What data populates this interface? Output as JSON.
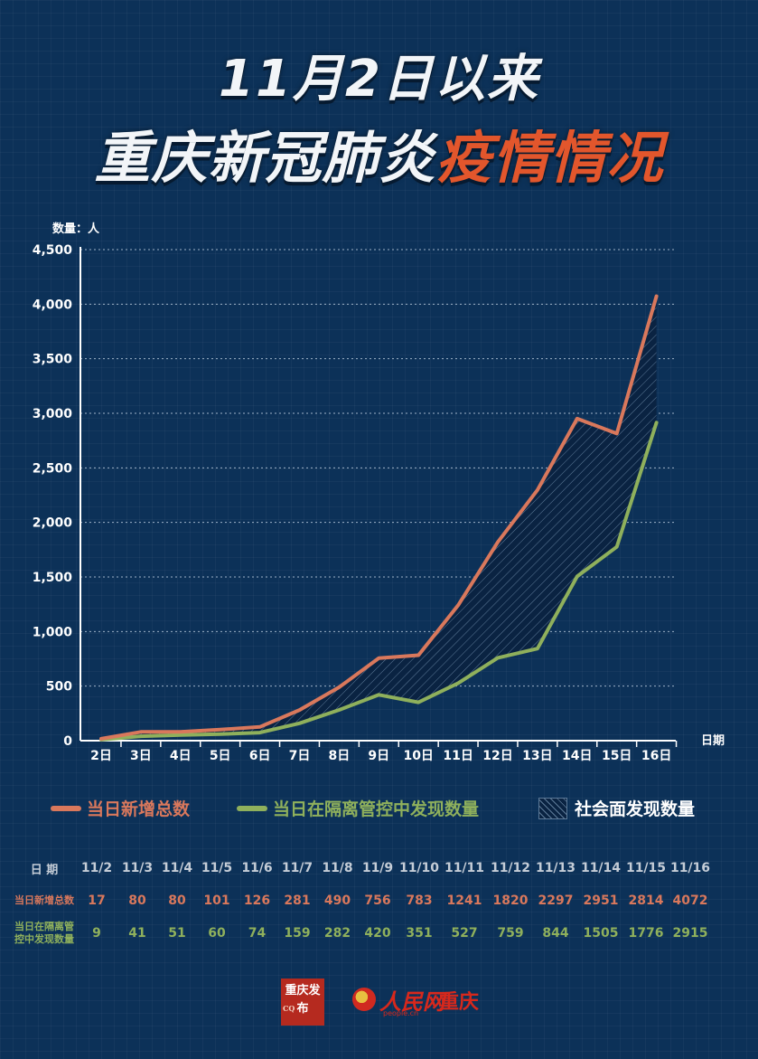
{
  "title": {
    "line1": "11月2日以来",
    "line2_white": "重庆新冠肺炎",
    "line2_highlight": "疫情情况"
  },
  "colors": {
    "background": "#0c3158",
    "total": "#d9785c",
    "isolated": "#8fb05c",
    "highlight": "#e2562c"
  },
  "chart_data": {
    "type": "line",
    "ylabel": "数量：人",
    "xlabel": "日期",
    "ylim": [
      0,
      4500
    ],
    "yticks": [
      0,
      500,
      1000,
      1500,
      2000,
      2500,
      3000,
      3500,
      4000,
      4500
    ],
    "ytick_labels": [
      "0",
      "500",
      "1,000",
      "1,500",
      "2,000",
      "2,500",
      "3,000",
      "3,500",
      "4,000",
      "4,500"
    ],
    "categories": [
      "2日",
      "3日",
      "4日",
      "5日",
      "6日",
      "7日",
      "8日",
      "9日",
      "10日",
      "11日",
      "12日",
      "13日",
      "14日",
      "15日",
      "16日"
    ],
    "grid": "horizontal dotted",
    "series": [
      {
        "name": "当日新增总数",
        "color": "#d9785c",
        "values": [
          17,
          80,
          80,
          101,
          126,
          281,
          490,
          756,
          783,
          1241,
          1820,
          2297,
          2951,
          2814,
          4072
        ]
      },
      {
        "name": "当日在隔离管控中发现数量",
        "color": "#8fb05c",
        "values": [
          9,
          41,
          51,
          60,
          74,
          159,
          282,
          420,
          351,
          527,
          759,
          844,
          1505,
          1776,
          2915
        ]
      }
    ],
    "area_between": {
      "name": "社会面发现数量"
    }
  },
  "legend": {
    "total": "当日新增总数",
    "isolated": "当日在隔离管控中发现数量",
    "community": "社会面发现数量"
  },
  "table": {
    "header_label": "日 期",
    "dates": [
      "11/2",
      "11/3",
      "11/4",
      "11/5",
      "11/6",
      "11/7",
      "11/8",
      "11/9",
      "11/10",
      "11/11",
      "11/12",
      "11/13",
      "11/14",
      "11/15",
      "11/16"
    ],
    "total_label": "当日新增总数",
    "total": [
      "17",
      "80",
      "80",
      "101",
      "126",
      "281",
      "490",
      "756",
      "783",
      "1241",
      "1820",
      "2297",
      "2951",
      "2814",
      "4072"
    ],
    "iso_label_1": "当日在隔离管",
    "iso_label_2": "控中发现数量",
    "iso": [
      "9",
      "41",
      "51",
      "60",
      "74",
      "159",
      "282",
      "420",
      "351",
      "527",
      "759",
      "844",
      "1505",
      "1776",
      "2915"
    ]
  },
  "footer": {
    "logo1_text": "重庆发布",
    "logo1_small": "CQ",
    "logo2_text": "人民网",
    "logo2_sub": "people.cn",
    "logo3_text": "重庆"
  }
}
